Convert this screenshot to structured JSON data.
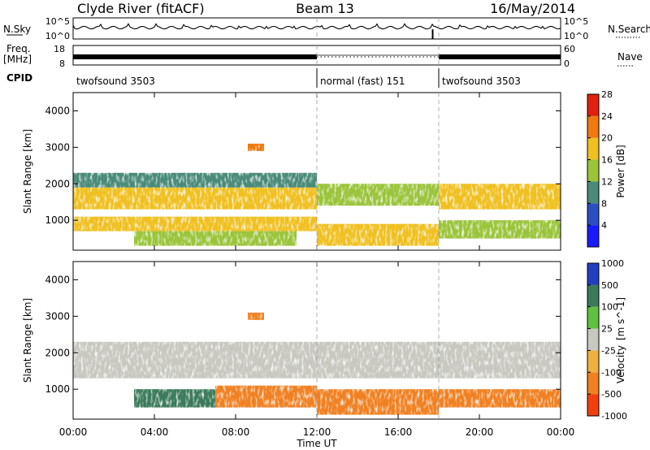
{
  "header": {
    "station": "Clyde River (fitACF)",
    "beam": "Beam 13",
    "date": "16/May/2014"
  },
  "top_panels": {
    "nsky_label": "N.Sky",
    "nsearch_label": "N.Search",
    "nsky_ticks": [
      "10^5",
      "10^0"
    ],
    "nsearch_ticks": [
      "10^5",
      "10^0"
    ],
    "freq_label": "Freq.",
    "freq_unit": "[MHz]",
    "freq_ticks": [
      "18",
      "8"
    ],
    "nave_label": "Nave",
    "nave_ticks": [
      "60",
      "0"
    ],
    "cpid_label": "CPID",
    "cpid_segments": [
      {
        "label": "twofsound 3503",
        "start_hour": 0,
        "end_hour": 12
      },
      {
        "label": "normal (fast) 151",
        "start_hour": 12,
        "end_hour": 18
      },
      {
        "label": "twofsound 3503",
        "start_hour": 18,
        "end_hour": 24
      }
    ]
  },
  "x_axis": {
    "label": "Time UT",
    "ticks": [
      "00:00",
      "04:00",
      "08:00",
      "12:00",
      "16:00",
      "20:00",
      "00:00"
    ]
  },
  "y_axis": {
    "label": "Slant Range [km]",
    "ticks": [
      "1000",
      "2000",
      "3000",
      "4000"
    ]
  },
  "power_scale": {
    "label": "Power [dB]",
    "ticks": [
      "4",
      "8",
      "12",
      "16",
      "20",
      "24",
      "28"
    ],
    "colors": [
      "#1a1aff",
      "#2a4fc0",
      "#4a8a78",
      "#9ac43a",
      "#f0c020",
      "#f07a10",
      "#e02010"
    ]
  },
  "velocity_scale": {
    "label": "Velocity",
    "unit": "[m s^-1]",
    "ticks": [
      "1000",
      "500",
      "100",
      "25",
      "-25",
      "-100",
      "-500",
      "-1000"
    ],
    "colors": [
      "#2040c0",
      "#3a7a5a",
      "#60c040",
      "#c8c8c0",
      "#f0b040",
      "#f08020",
      "#f04010"
    ]
  },
  "chart_data": [
    {
      "type": "heatmap",
      "title": "Power",
      "xlabel": "Time UT",
      "ylabel": "Slant Range [km]",
      "xlim": [
        0,
        24
      ],
      "ylim": [
        180,
        4500
      ],
      "colorbar_label": "Power [dB]",
      "colorbar_range": [
        0,
        32
      ],
      "regions": [
        {
          "t0": 0.0,
          "t1": 12.0,
          "r0": 1300,
          "r1": 1900,
          "value": 20
        },
        {
          "t0": 0.0,
          "t1": 12.0,
          "r0": 1900,
          "r1": 2300,
          "value": 10
        },
        {
          "t0": 0.0,
          "t1": 12.0,
          "r0": 700,
          "r1": 1100,
          "value": 22
        },
        {
          "t0": 3.0,
          "t1": 11.0,
          "r0": 300,
          "r1": 700,
          "value": 18
        },
        {
          "t0": 8.6,
          "t1": 9.4,
          "r0": 2900,
          "r1": 3100,
          "value": 24
        },
        {
          "t0": 12.0,
          "t1": 18.0,
          "r0": 1400,
          "r1": 2000,
          "value": 16
        },
        {
          "t0": 12.0,
          "t1": 18.0,
          "r0": 300,
          "r1": 900,
          "value": 20
        },
        {
          "t0": 18.0,
          "t1": 24.0,
          "r0": 1300,
          "r1": 2000,
          "value": 20
        },
        {
          "t0": 18.0,
          "t1": 24.0,
          "r0": 500,
          "r1": 1000,
          "value": 14
        }
      ]
    },
    {
      "type": "heatmap",
      "title": "Velocity",
      "xlabel": "Time UT",
      "ylabel": "Slant Range [km]",
      "xlim": [
        0,
        24
      ],
      "ylim": [
        180,
        4500
      ],
      "colorbar_label": "Velocity [m s^-1]",
      "colorbar_range": [
        -1000,
        1000
      ],
      "regions": [
        {
          "t0": 0.0,
          "t1": 24.0,
          "r0": 1300,
          "r1": 2300,
          "value": 0
        },
        {
          "t0": 3.0,
          "t1": 7.0,
          "r0": 500,
          "r1": 1000,
          "value": 150
        },
        {
          "t0": 7.0,
          "t1": 12.0,
          "r0": 500,
          "r1": 1100,
          "value": -200
        },
        {
          "t0": 12.0,
          "t1": 18.0,
          "r0": 300,
          "r1": 1000,
          "value": -250
        },
        {
          "t0": 18.0,
          "t1": 24.0,
          "r0": 500,
          "r1": 1000,
          "value": -150
        },
        {
          "t0": 8.6,
          "t1": 9.4,
          "r0": 2900,
          "r1": 3100,
          "value": -120
        }
      ]
    }
  ]
}
